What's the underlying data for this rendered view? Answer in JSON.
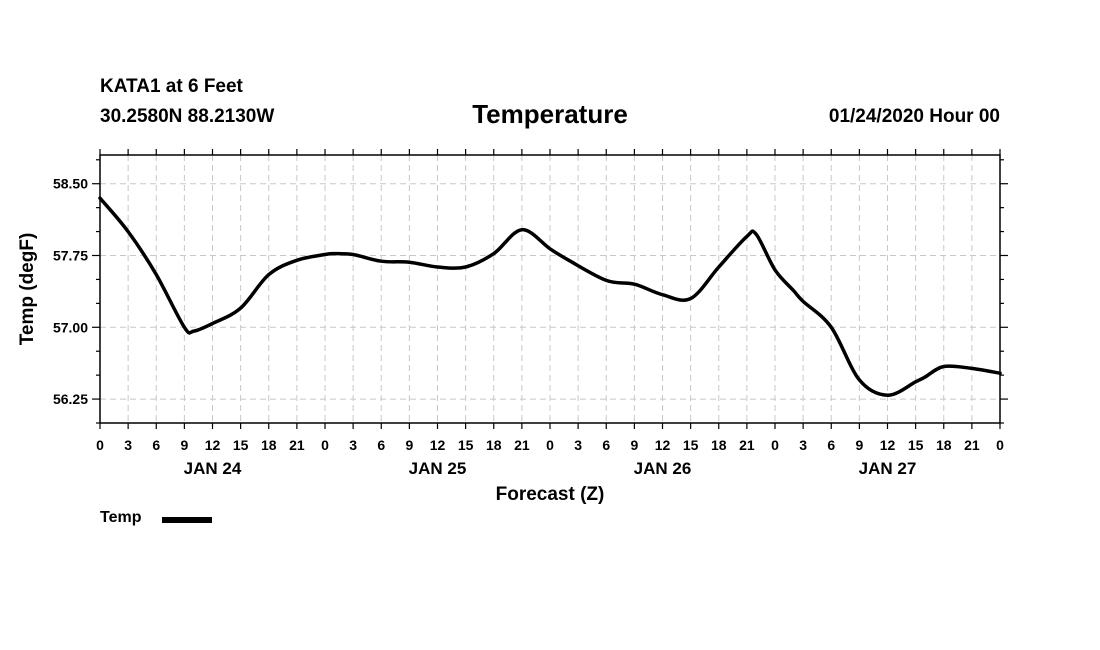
{
  "header": {
    "station": "KATA1 at 6 Feet",
    "coords": "30.2580N 88.2130W",
    "issued": "01/24/2020 Hour 00"
  },
  "chart_data": {
    "type": "line",
    "title": "Temperature",
    "xlabel": "Forecast (Z)",
    "ylabel": "Temp (degF)",
    "xlim": [
      0,
      96
    ],
    "ylim": [
      56.0,
      58.8
    ],
    "yticks": [
      "58.50",
      "57.75",
      "57.00",
      "56.25"
    ],
    "ytick_values": [
      58.5,
      57.75,
      57.0,
      56.25
    ],
    "x_tick_hours": [
      0,
      3,
      6,
      9,
      12,
      15,
      18,
      21,
      24,
      27,
      30,
      33,
      36,
      39,
      42,
      45,
      48,
      51,
      54,
      57,
      60,
      63,
      66,
      69,
      72,
      75,
      78,
      81,
      84,
      87,
      90,
      93,
      96
    ],
    "x_tick_labels": [
      "0",
      "3",
      "6",
      "9",
      "12",
      "15",
      "18",
      "21",
      "0",
      "3",
      "6",
      "9",
      "12",
      "15",
      "18",
      "21",
      "0",
      "3",
      "6",
      "9",
      "12",
      "15",
      "18",
      "21",
      "0",
      "3",
      "6",
      "9",
      "12",
      "15",
      "18",
      "21",
      "0"
    ],
    "day_labels": [
      {
        "hour": 12,
        "label": "JAN 24"
      },
      {
        "hour": 36,
        "label": "JAN 25"
      },
      {
        "hour": 60,
        "label": "JAN 26"
      },
      {
        "hour": 84,
        "label": "JAN 27"
      }
    ],
    "grid": true,
    "legend": "bottom-left",
    "series": [
      {
        "name": "Temp",
        "color": "#000000",
        "x": [
          0,
          3,
          6,
          9,
          10,
          12,
          15,
          18,
          21,
          24,
          25,
          27,
          30,
          33,
          36,
          39,
          42,
          45,
          48,
          50,
          54,
          57,
          60,
          63,
          66,
          69,
          70,
          72,
          74,
          75,
          78,
          81,
          84,
          87,
          88,
          90,
          93,
          96
        ],
        "y": [
          58.35,
          58.0,
          57.55,
          57.0,
          56.96,
          57.04,
          57.2,
          57.55,
          57.7,
          57.76,
          57.77,
          57.76,
          57.69,
          57.68,
          57.63,
          57.63,
          57.77,
          58.02,
          57.82,
          57.7,
          57.49,
          57.45,
          57.34,
          57.3,
          57.63,
          57.95,
          57.97,
          57.6,
          57.38,
          57.27,
          57.0,
          56.45,
          56.29,
          56.43,
          56.48,
          56.59,
          56.57,
          56.52
        ]
      }
    ]
  }
}
